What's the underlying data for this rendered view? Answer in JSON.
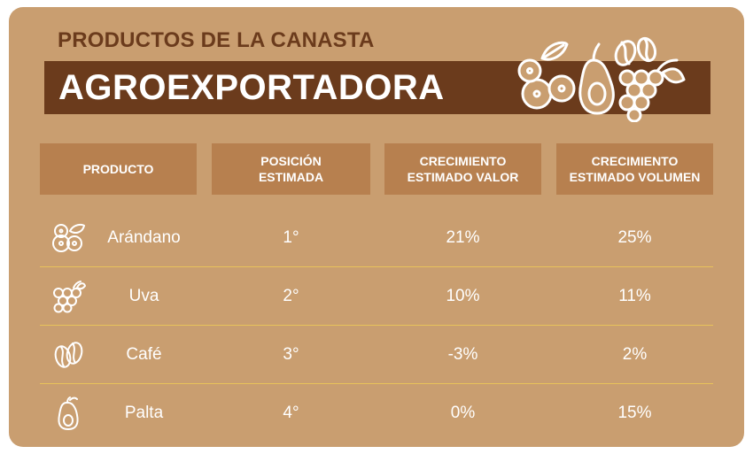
{
  "header": {
    "subtitle": "PRODUCTOS DE LA CANASTA",
    "title": "AGROEXPORTADORA",
    "illustration_icon": "fruits-illustration-icon"
  },
  "table": {
    "columns": [
      "PRODUCTO",
      "POSICIÓN\nESTIMADA",
      "CRECIMIENTO\nESTIMADO VALOR",
      "CRECIMIENTO\nESTIMADO VOLUMEN"
    ],
    "rows": [
      {
        "icon": "blueberry-icon",
        "producto": "Arándano",
        "posicion": "1°",
        "valor": "21%",
        "volumen": "25%"
      },
      {
        "icon": "grapes-icon",
        "producto": "Uva",
        "posicion": "2°",
        "valor": "10%",
        "volumen": "11%"
      },
      {
        "icon": "coffee-bean-icon",
        "producto": "Café",
        "posicion": "3°",
        "valor": "-3%",
        "volumen": "2%"
      },
      {
        "icon": "avocado-icon",
        "producto": "Palta",
        "posicion": "4°",
        "valor": "0%",
        "volumen": "15%"
      }
    ]
  },
  "colors": {
    "background": "#c99e70",
    "header_cell": "#b7804f",
    "title_bar": "#6b3b1c",
    "separator": "#e8c25a",
    "text": "#ffffff"
  }
}
